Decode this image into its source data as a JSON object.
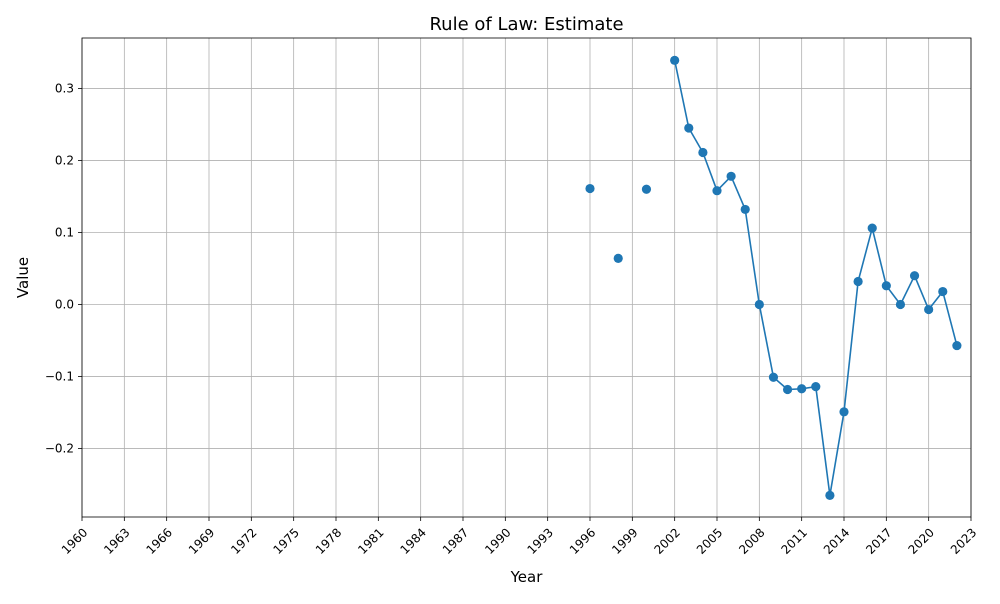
{
  "chart_data": {
    "type": "line",
    "title": "Rule of Law: Estimate",
    "xlabel": "Year",
    "ylabel": "Value",
    "xlim": [
      1960,
      2023
    ],
    "ylim": [
      -0.295,
      0.37
    ],
    "grid": true,
    "x_ticks": [
      "1960",
      "1963",
      "1966",
      "1969",
      "1972",
      "1975",
      "1978",
      "1981",
      "1984",
      "1987",
      "1990",
      "1993",
      "1996",
      "1999",
      "2002",
      "2005",
      "2008",
      "2011",
      "2014",
      "2017",
      "2020",
      "2023"
    ],
    "y_ticks": [
      "−0.2",
      "−0.1",
      "0.0",
      "0.1",
      "0.2",
      "0.3"
    ],
    "series": [
      {
        "color": "#1f77b4",
        "x": [
          1996,
          1998,
          2000,
          2002,
          2003,
          2004,
          2005,
          2006,
          2007,
          2008,
          2009,
          2010,
          2011,
          2012,
          2013,
          2014,
          2015,
          2016,
          2017,
          2018,
          2019,
          2020,
          2021,
          2022
        ],
        "y": [
          0.161,
          0.064,
          0.16,
          0.339,
          0.245,
          0.211,
          0.158,
          0.178,
          0.132,
          0.0,
          -0.101,
          -0.118,
          -0.117,
          -0.114,
          -0.265,
          -0.149,
          0.032,
          0.106,
          0.026,
          0.0,
          0.04,
          -0.007,
          0.018,
          -0.057
        ]
      }
    ]
  }
}
